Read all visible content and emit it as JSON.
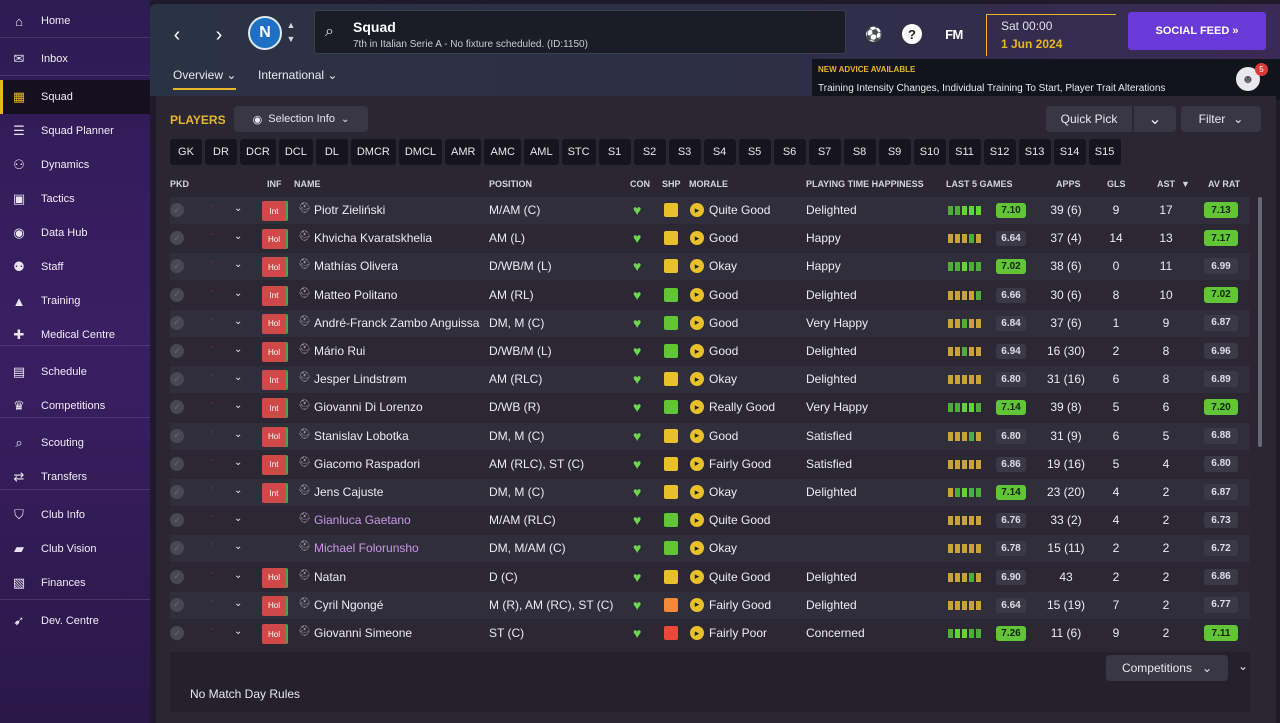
{
  "sidebar": {
    "items": [
      {
        "label": "Home",
        "icon": "home-icon",
        "glyph": "⌂"
      },
      {
        "label": "Inbox",
        "icon": "inbox-icon",
        "glyph": "✉"
      },
      {
        "label": "Squad",
        "icon": "squad-icon",
        "glyph": "▦"
      },
      {
        "label": "Squad Planner",
        "icon": "squad-planner-icon",
        "glyph": "☰"
      },
      {
        "label": "Dynamics",
        "icon": "dynamics-icon",
        "glyph": "⚇"
      },
      {
        "label": "Tactics",
        "icon": "tactics-icon",
        "glyph": "▣"
      },
      {
        "label": "Data Hub",
        "icon": "data-hub-icon",
        "glyph": "◉"
      },
      {
        "label": "Staff",
        "icon": "staff-icon",
        "glyph": "⚉"
      },
      {
        "label": "Training",
        "icon": "training-icon",
        "glyph": "▲"
      },
      {
        "label": "Medical Centre",
        "icon": "medical-icon",
        "glyph": "✚"
      },
      {
        "label": "Schedule",
        "icon": "schedule-icon",
        "glyph": "▤"
      },
      {
        "label": "Competitions",
        "icon": "trophy-icon",
        "glyph": "♛"
      },
      {
        "label": "Scouting",
        "icon": "scouting-icon",
        "glyph": "⌕"
      },
      {
        "label": "Transfers",
        "icon": "transfers-icon",
        "glyph": "⇄"
      },
      {
        "label": "Club Info",
        "icon": "club-info-icon",
        "glyph": "⛉"
      },
      {
        "label": "Club Vision",
        "icon": "club-vision-icon",
        "glyph": "▰"
      },
      {
        "label": "Finances",
        "icon": "finances-icon",
        "glyph": "▧"
      },
      {
        "label": "Dev. Centre",
        "icon": "dev-centre-icon",
        "glyph": "➹"
      }
    ],
    "active": "Squad"
  },
  "header": {
    "back_icon": "‹",
    "forward_icon": "›",
    "club_badge": "N",
    "title": "Squad",
    "subtitle": "7th in Italian Serie A - No fixture scheduled. (ID:1150)",
    "fm_logo": "FM",
    "help": "?",
    "date_time": "Sat 00:00",
    "date_day": "1 Jun 2024",
    "social_feed": "SOCIAL FEED  »",
    "tabs": [
      "Overview ⌄",
      "International ⌄"
    ]
  },
  "advice": {
    "heading": "NEW ADVICE AVAILABLE",
    "body": "Training Intensity Changes, Individual Training To Start, Player Trait Alterations",
    "count": "5"
  },
  "toolbar": {
    "players_label": "PLAYERS",
    "selection_info": "Selection Info",
    "quick_pick": "Quick Pick",
    "filter": "Filter"
  },
  "positions": [
    "GK",
    "DR",
    "DCR",
    "DCL",
    "DL",
    "DMCR",
    "DMCL",
    "AMR",
    "AMC",
    "AML",
    "STC",
    "S1",
    "S2",
    "S3",
    "S4",
    "S5",
    "S6",
    "S7",
    "S8",
    "S9",
    "S10",
    "S11",
    "S12",
    "S13",
    "S14",
    "S15"
  ],
  "columns": {
    "pkd": "PKD",
    "inf": "INF",
    "name": "NAME",
    "position": "POSITION",
    "con": "CON",
    "shp": "SHP",
    "morale": "MORALE",
    "pth": "PLAYING TIME HAPPINESS",
    "last5": "LAST 5 GAMES",
    "apps": "APPS",
    "gls": "GLS",
    "ast": "AST",
    "avrat": "AV RAT"
  },
  "players": [
    {
      "inf": "Int",
      "name": "Piotr Zieliński",
      "position": "M/AM (C)",
      "morale": "Quite Good",
      "pth": "Delighted",
      "form": [
        "good",
        "good",
        "great",
        "great",
        "great"
      ],
      "last": "7.10",
      "last_hi": true,
      "apps": "39 (6)",
      "gls": "9",
      "ast": "17",
      "avrat": "7.13",
      "avrat_hi": true
    },
    {
      "inf": "Hol",
      "name": "Khvicha Kvaratskhelia",
      "position": "AM (L)",
      "morale": "Good",
      "pth": "Happy",
      "form": [
        "avg",
        "avg",
        "avg",
        "good",
        "avg"
      ],
      "last": "6.64",
      "last_hi": false,
      "apps": "37 (4)",
      "gls": "14",
      "ast": "13",
      "avrat": "7.17",
      "avrat_hi": true
    },
    {
      "inf": "Hol",
      "name": "Mathías Olivera",
      "position": "D/WB/M (L)",
      "morale": "Okay",
      "pth": "Happy",
      "form": [
        "good",
        "good",
        "great",
        "good",
        "good"
      ],
      "last": "7.02",
      "last_hi": true,
      "apps": "38 (6)",
      "gls": "0",
      "ast": "11",
      "avrat": "6.99",
      "avrat_hi": false
    },
    {
      "inf": "Int",
      "name": "Matteo Politano",
      "position": "AM (RL)",
      "morale": "Good",
      "pth": "Delighted",
      "form": [
        "avg",
        "avg",
        "avg",
        "avg",
        "good"
      ],
      "last": "6.66",
      "last_hi": false,
      "apps": "30 (6)",
      "gls": "8",
      "ast": "10",
      "avrat": "7.02",
      "avrat_hi": true
    },
    {
      "inf": "Hol",
      "name": "André-Franck Zambo Anguissa",
      "position": "DM, M (C)",
      "morale": "Good",
      "pth": "Very Happy",
      "form": [
        "avg",
        "avg",
        "good",
        "avg",
        "avg"
      ],
      "last": "6.84",
      "last_hi": false,
      "apps": "37 (6)",
      "gls": "1",
      "ast": "9",
      "avrat": "6.87",
      "avrat_hi": false
    },
    {
      "inf": "Hol",
      "name": "Mário Rui",
      "position": "D/WB/M (L)",
      "morale": "Good",
      "pth": "Delighted",
      "form": [
        "avg",
        "avg",
        "good",
        "avg",
        "avg"
      ],
      "last": "6.94",
      "last_hi": false,
      "apps": "16 (30)",
      "gls": "2",
      "ast": "8",
      "avrat": "6.96",
      "avrat_hi": false
    },
    {
      "inf": "Int",
      "name": "Jesper Lindstrøm",
      "position": "AM (RLC)",
      "morale": "Okay",
      "pth": "Delighted",
      "form": [
        "avg",
        "avg",
        "avg",
        "avg",
        "avg"
      ],
      "last": "6.80",
      "last_hi": false,
      "apps": "31 (16)",
      "gls": "6",
      "ast": "8",
      "avrat": "6.89",
      "avrat_hi": false
    },
    {
      "inf": "Int",
      "name": "Giovanni Di Lorenzo",
      "position": "D/WB (R)",
      "morale": "Really Good",
      "pth": "Very Happy",
      "form": [
        "good",
        "good",
        "great",
        "great",
        "good"
      ],
      "last": "7.14",
      "last_hi": true,
      "apps": "39 (8)",
      "gls": "5",
      "ast": "6",
      "avrat": "7.20",
      "avrat_hi": true
    },
    {
      "inf": "Hol",
      "name": "Stanislav Lobotka",
      "position": "DM, M (C)",
      "morale": "Good",
      "pth": "Satisfied",
      "form": [
        "avg",
        "avg",
        "avg",
        "good",
        "avg"
      ],
      "last": "6.80",
      "last_hi": false,
      "apps": "31 (9)",
      "gls": "6",
      "ast": "5",
      "avrat": "6.88",
      "avrat_hi": false
    },
    {
      "inf": "Int",
      "name": "Giacomo Raspadori",
      "position": "AM (RLC), ST (C)",
      "morale": "Fairly Good",
      "pth": "Satisfied",
      "form": [
        "avg",
        "avg",
        "avg",
        "avg",
        "avg"
      ],
      "last": "6.86",
      "last_hi": false,
      "apps": "19 (16)",
      "gls": "5",
      "ast": "4",
      "avrat": "6.80",
      "avrat_hi": false
    },
    {
      "inf": "Int",
      "name": "Jens Cajuste",
      "position": "DM, M (C)",
      "morale": "Okay",
      "pth": "Delighted",
      "form": [
        "avg",
        "good",
        "great",
        "good",
        "good"
      ],
      "last": "7.14",
      "last_hi": true,
      "apps": "23 (20)",
      "gls": "4",
      "ast": "2",
      "avrat": "6.87",
      "avrat_hi": false
    },
    {
      "inf": "",
      "name": "Gianluca Gaetano",
      "position": "M/AM (RLC)",
      "morale": "Quite Good",
      "pth": "",
      "form": [
        "avg",
        "avg",
        "avg",
        "avg",
        "avg"
      ],
      "last": "6.76",
      "last_hi": false,
      "apps": "33 (2)",
      "gls": "4",
      "ast": "2",
      "avrat": "6.73",
      "avrat_hi": false,
      "loan": true
    },
    {
      "inf": "",
      "name": "Michael Folorunsho",
      "position": "DM, M/AM (C)",
      "morale": "Okay",
      "pth": "",
      "form": [
        "avg",
        "avg",
        "avg",
        "avg",
        "avg"
      ],
      "last": "6.78",
      "last_hi": false,
      "apps": "15 (11)",
      "gls": "2",
      "ast": "2",
      "avrat": "6.72",
      "avrat_hi": false,
      "loan": true
    },
    {
      "inf": "Hol",
      "name": "Natan",
      "position": "D (C)",
      "morale": "Quite Good",
      "pth": "Delighted",
      "form": [
        "avg",
        "avg",
        "avg",
        "good",
        "avg"
      ],
      "last": "6.90",
      "last_hi": false,
      "apps": "43",
      "gls": "2",
      "ast": "2",
      "avrat": "6.86",
      "avrat_hi": false
    },
    {
      "inf": "Hol",
      "name": "Cyril Ngongé",
      "position": "M (R), AM (RC), ST (C)",
      "morale": "Fairly Good",
      "pth": "Delighted",
      "form": [
        "avg",
        "avg",
        "avg",
        "avg",
        "avg"
      ],
      "last": "6.64",
      "last_hi": false,
      "apps": "15 (19)",
      "gls": "7",
      "ast": "2",
      "avrat": "6.77",
      "avrat_hi": false
    },
    {
      "inf": "Hol",
      "name": "Giovanni Simeone",
      "position": "ST (C)",
      "morale": "Fairly Poor",
      "pth": "Concerned",
      "form": [
        "good",
        "great",
        "great",
        "good",
        "good"
      ],
      "last": "7.26",
      "last_hi": true,
      "apps": "11 (6)",
      "gls": "9",
      "ast": "2",
      "avrat": "7.11",
      "avrat_hi": true
    }
  ],
  "footer": {
    "competitions": "Competitions",
    "match_rules": "No Match Day Rules"
  },
  "colors": {
    "accent": "#e8b628",
    "brand": "#6a3ad8",
    "good": "#62c437"
  }
}
